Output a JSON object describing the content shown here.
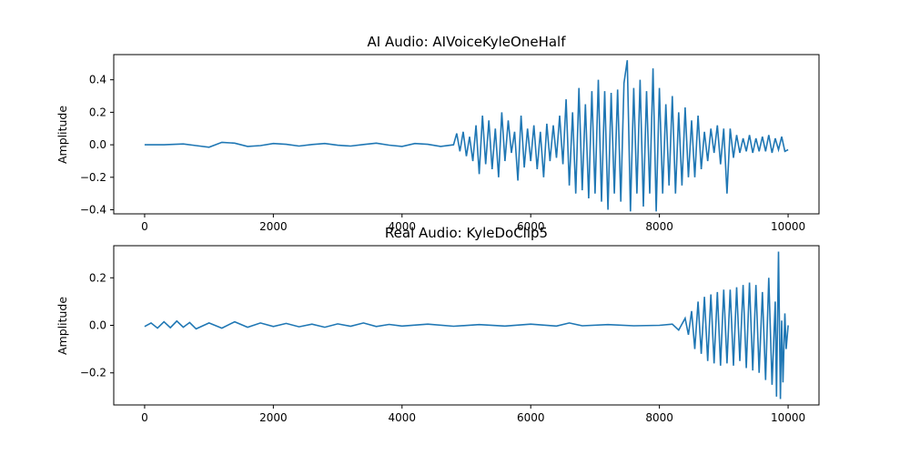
{
  "chart_data": [
    {
      "type": "line",
      "title": "AI Audio: AIVoiceKyleOneHalf",
      "xlabel": "",
      "ylabel": "Amplitude",
      "xlim": [
        -480,
        10480
      ],
      "ylim": [
        -0.425,
        0.555
      ],
      "xticks": [
        0,
        2000,
        4000,
        6000,
        8000,
        10000
      ],
      "yticks": [
        -0.4,
        -0.2,
        0.0,
        0.2,
        0.4
      ],
      "ytick_labels": [
        "−0.4",
        "−0.2",
        "0.0",
        "0.2",
        "0.4"
      ],
      "grid": false,
      "color": "#1f77b4",
      "series": [
        {
          "x": [
            0,
            300,
            600,
            800,
            1000,
            1200,
            1400,
            1600,
            1800,
            2000,
            2200,
            2400,
            2600,
            2800,
            3000,
            3200,
            3400,
            3600,
            3800,
            4000,
            4200,
            4400,
            4600,
            4800,
            4850,
            4900,
            4950,
            5000,
            5050,
            5100,
            5150,
            5200,
            5250,
            5300,
            5350,
            5400,
            5450,
            5500,
            5550,
            5600,
            5650,
            5700,
            5750,
            5800,
            5850,
            5900,
            5950,
            6000,
            6050,
            6100,
            6150,
            6200,
            6250,
            6300,
            6350,
            6400,
            6450,
            6500,
            6550,
            6600,
            6650,
            6700,
            6750,
            6800,
            6850,
            6900,
            6950,
            7000,
            7050,
            7100,
            7150,
            7200,
            7250,
            7300,
            7350,
            7400,
            7450,
            7500,
            7550,
            7600,
            7650,
            7700,
            7750,
            7800,
            7850,
            7900,
            7950,
            8000,
            8050,
            8100,
            8150,
            8200,
            8250,
            8300,
            8350,
            8400,
            8450,
            8500,
            8550,
            8600,
            8650,
            8700,
            8750,
            8800,
            8850,
            8900,
            8950,
            9000,
            9050,
            9100,
            9150,
            9200,
            9250,
            9300,
            9350,
            9400,
            9450,
            9500,
            9550,
            9600,
            9650,
            9700,
            9750,
            9800,
            9850,
            9900,
            9950,
            10000
          ],
          "y": [
            0.0,
            0.0,
            0.005,
            -0.005,
            -0.015,
            0.015,
            0.01,
            -0.01,
            -0.005,
            0.008,
            0.003,
            -0.008,
            0.002,
            0.008,
            -0.003,
            -0.008,
            0.002,
            0.01,
            -0.002,
            -0.01,
            0.008,
            0.003,
            -0.01,
            0.0,
            0.07,
            -0.04,
            0.08,
            -0.07,
            0.05,
            -0.1,
            0.12,
            -0.18,
            0.18,
            -0.12,
            0.15,
            -0.15,
            0.1,
            -0.2,
            0.2,
            -0.1,
            0.15,
            -0.05,
            0.08,
            -0.22,
            0.18,
            -0.14,
            0.1,
            -0.1,
            0.12,
            -0.15,
            0.08,
            -0.2,
            0.13,
            -0.1,
            0.12,
            -0.08,
            0.18,
            -0.12,
            0.28,
            -0.25,
            0.2,
            -0.3,
            0.35,
            -0.28,
            0.25,
            -0.33,
            0.33,
            -0.3,
            0.4,
            -0.35,
            0.33,
            -0.4,
            0.32,
            -0.3,
            0.34,
            -0.35,
            0.38,
            0.52,
            -0.41,
            0.35,
            -0.3,
            0.4,
            -0.38,
            0.33,
            -0.3,
            0.47,
            -0.41,
            0.35,
            -0.3,
            0.25,
            -0.25,
            0.3,
            -0.3,
            0.2,
            -0.25,
            0.23,
            -0.2,
            0.15,
            -0.2,
            0.18,
            -0.15,
            0.08,
            -0.1,
            0.1,
            -0.05,
            0.12,
            -0.12,
            0.1,
            -0.3,
            0.1,
            -0.08,
            0.06,
            -0.05,
            0.04,
            -0.04,
            0.06,
            -0.05,
            0.04,
            -0.04,
            0.05,
            -0.04,
            0.06,
            -0.05,
            0.04,
            -0.03,
            0.05,
            -0.04,
            -0.03
          ]
        }
      ]
    },
    {
      "type": "line",
      "title": "Real Audio: KyleDoClip5",
      "xlabel": "",
      "ylabel": "Amplitude",
      "xlim": [
        -480,
        10480
      ],
      "ylim": [
        -0.335,
        0.335
      ],
      "xticks": [
        0,
        2000,
        4000,
        6000,
        8000,
        10000
      ],
      "yticks": [
        -0.2,
        0.0,
        0.2
      ],
      "ytick_labels": [
        "−0.2",
        "0.0",
        "0.2"
      ],
      "grid": false,
      "color": "#1f77b4",
      "series": [
        {
          "x": [
            0,
            100,
            200,
            300,
            400,
            500,
            600,
            700,
            800,
            1000,
            1200,
            1400,
            1600,
            1800,
            2000,
            2200,
            2400,
            2600,
            2800,
            3000,
            3200,
            3400,
            3600,
            3800,
            4000,
            4400,
            4800,
            5200,
            5600,
            6000,
            6400,
            6600,
            6800,
            7200,
            7600,
            8000,
            8200,
            8300,
            8400,
            8450,
            8500,
            8550,
            8600,
            8650,
            8700,
            8750,
            8800,
            8850,
            8900,
            8950,
            9000,
            9050,
            9100,
            9150,
            9200,
            9250,
            9300,
            9350,
            9400,
            9450,
            9500,
            9550,
            9600,
            9650,
            9700,
            9750,
            9800,
            9820,
            9850,
            9880,
            9900,
            9920,
            9950,
            9970,
            10000
          ],
          "y": [
            -0.005,
            0.01,
            -0.012,
            0.015,
            -0.01,
            0.018,
            -0.008,
            0.012,
            -0.015,
            0.01,
            -0.012,
            0.015,
            -0.008,
            0.01,
            -0.005,
            0.008,
            -0.006,
            0.005,
            -0.008,
            0.006,
            -0.004,
            0.01,
            -0.005,
            0.004,
            -0.003,
            0.005,
            -0.004,
            0.003,
            -0.003,
            0.005,
            -0.003,
            0.01,
            -0.002,
            0.003,
            -0.002,
            0.0,
            0.005,
            -0.02,
            0.03,
            -0.04,
            0.06,
            -0.1,
            0.1,
            -0.12,
            0.12,
            -0.15,
            0.13,
            -0.16,
            0.14,
            -0.17,
            0.15,
            -0.16,
            0.15,
            -0.17,
            0.16,
            -0.15,
            0.17,
            -0.18,
            0.18,
            -0.19,
            0.17,
            -0.2,
            0.14,
            -0.23,
            0.2,
            -0.25,
            0.1,
            -0.3,
            0.31,
            -0.31,
            0.02,
            -0.24,
            0.05,
            -0.1,
            0.0
          ]
        }
      ]
    }
  ]
}
